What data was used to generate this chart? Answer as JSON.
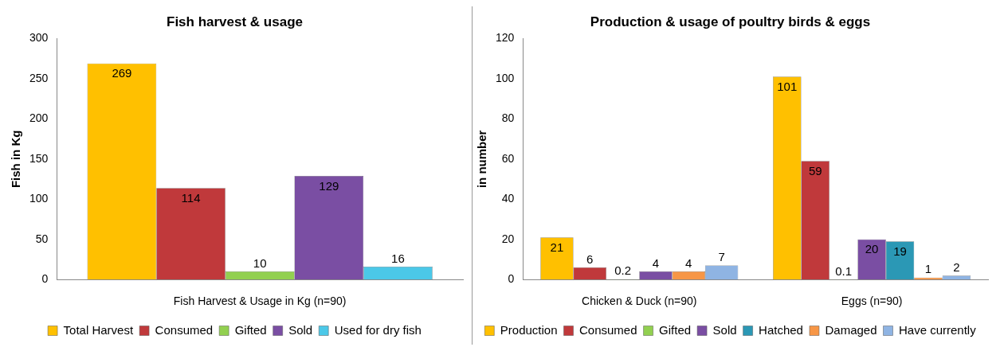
{
  "chart_data": [
    {
      "type": "bar",
      "title": "Fish harvest & usage",
      "ylabel": "Fish in Kg",
      "categories": [
        "Fish Harvest & Usage in Kg (n=90)"
      ],
      "series": [
        {
          "name": "Total Harvest",
          "color": "#ffc000",
          "values": [
            269
          ]
        },
        {
          "name": "Consumed",
          "color": "#c0393b",
          "values": [
            114
          ]
        },
        {
          "name": "Gifted",
          "color": "#92d050",
          "values": [
            10
          ]
        },
        {
          "name": "Sold",
          "color": "#7a4ea3",
          "values": [
            129
          ]
        },
        {
          "name": "Used for dry fish",
          "color": "#4bc8e8",
          "values": [
            16
          ]
        }
      ],
      "ylim": [
        0,
        300
      ],
      "yticks": [
        0,
        50,
        100,
        150,
        200,
        250,
        300
      ],
      "grid": false,
      "legend": "bottom",
      "data_labels": true
    },
    {
      "type": "bar",
      "title": "Production & usage of poultry birds & eggs",
      "ylabel": "in number",
      "categories": [
        "Chicken & Duck (n=90)",
        "Eggs (n=90)"
      ],
      "series": [
        {
          "name": "Production",
          "color": "#ffc000",
          "values": [
            21,
            101
          ]
        },
        {
          "name": "Consumed",
          "color": "#c0393b",
          "values": [
            6,
            59
          ]
        },
        {
          "name": "Gifted",
          "color": "#92d050",
          "values": [
            0.2,
            0.1
          ]
        },
        {
          "name": "Sold",
          "color": "#7a4ea3",
          "values": [
            4,
            20
          ]
        },
        {
          "name": "Hatched",
          "color": "#2b98b5",
          "values": [
            null,
            19
          ]
        },
        {
          "name": "Damaged",
          "color": "#f79646",
          "values": [
            4,
            1
          ]
        },
        {
          "name": "Have currently",
          "color": "#8fb4e3",
          "values": [
            7,
            2
          ]
        }
      ],
      "ylim": [
        0,
        120
      ],
      "yticks": [
        0,
        20,
        40,
        60,
        80,
        100,
        120
      ],
      "grid": false,
      "legend": "bottom",
      "data_labels": true
    }
  ]
}
